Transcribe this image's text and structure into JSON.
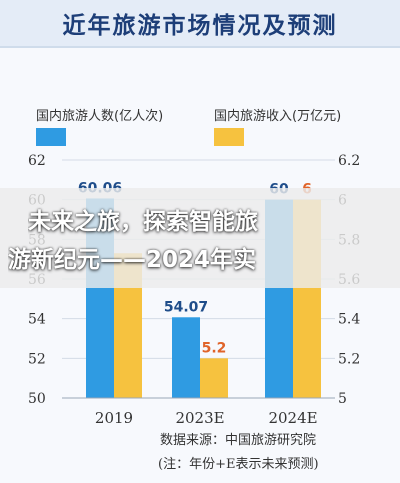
{
  "header": {
    "title": "近年旅游市场情况及预测"
  },
  "overlay": {
    "line1": "未来之旅，探索智能旅",
    "line2": "游新纪元——2024年实"
  },
  "colors": {
    "people": "#2f9be2",
    "income": "#f6c23f",
    "grid": "#d4dbe6",
    "axis_text": "#333333",
    "people_label": "#1f4d8a",
    "income_label": "#e0642a"
  },
  "chart_data": {
    "type": "bar",
    "categories": [
      "2019",
      "2023E",
      "2024E"
    ],
    "series": [
      {
        "name": "国内旅游人数(亿人次)",
        "axis": "left",
        "values": [
          60.06,
          54.07,
          60
        ],
        "labels": [
          "60.06",
          "54.07",
          "60"
        ]
      },
      {
        "name": "国内旅游收入(万亿元)",
        "axis": "right",
        "values": [
          5.73,
          5.2,
          6
        ],
        "labels": [
          "",
          "5.2",
          "6"
        ]
      }
    ],
    "y_left": {
      "range": [
        50,
        62
      ],
      "ticks": [
        "50",
        "52",
        "54",
        "56",
        "58",
        "60",
        "62"
      ]
    },
    "y_right": {
      "range": [
        5,
        6.2
      ],
      "ticks": [
        "5",
        "5.2",
        "5.4",
        "5.6",
        "5.8",
        "6",
        "6.2"
      ]
    },
    "legend_position": "top",
    "grid": true
  },
  "source": {
    "line1": "数据来源：中国旅游研究院",
    "line2": "(注：年份+E表示未来预测)"
  }
}
